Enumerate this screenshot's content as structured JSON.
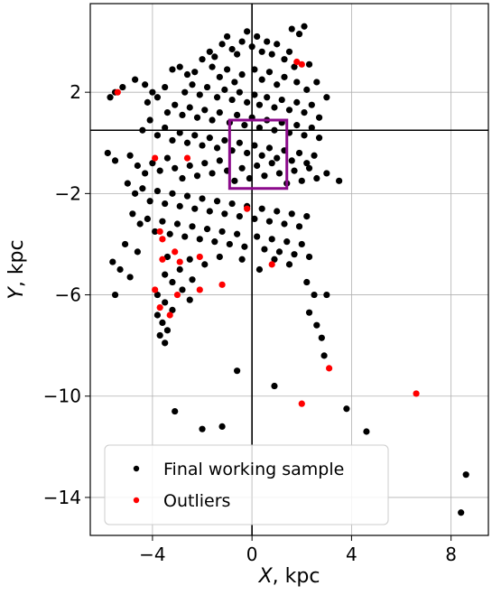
{
  "chart_data": {
    "type": "scatter",
    "xlabel_var": "X",
    "xlabel_unit": ", kpc",
    "ylabel_var": "Y",
    "ylabel_unit": ", kpc",
    "xlim": [
      -6.5,
      9.5
    ],
    "ylim": [
      -15.5,
      5.5
    ],
    "xticks": [
      -4,
      0,
      4,
      8
    ],
    "yticks": [
      2,
      -2,
      -6,
      -10,
      -14
    ],
    "xtick_labels": [
      "−4",
      "0",
      "4",
      "8"
    ],
    "ytick_labels": [
      "2",
      "−2",
      "−6",
      "−10",
      "−14"
    ],
    "grid": true,
    "reference_lines": {
      "x": 0,
      "y": 0.5
    },
    "region_box": {
      "x": [
        -0.9,
        1.4
      ],
      "y": [
        -1.8,
        0.9
      ],
      "color": "#8b0a8b"
    },
    "legend": {
      "placement": "lower-left",
      "entries": [
        {
          "label": "Final working sample",
          "color": "#000000"
        },
        {
          "label": "Outliers",
          "color": "#ff0000"
        }
      ]
    },
    "series": [
      {
        "name": "Final working sample",
        "color": "#000000",
        "points": [
          [
            -5.7,
            1.8
          ],
          [
            -5.5,
            2.0
          ],
          [
            -5.2,
            2.2
          ],
          [
            -4.7,
            2.5
          ],
          [
            -4.3,
            2.3
          ],
          [
            -4.0,
            2.0
          ],
          [
            -4.2,
            1.6
          ],
          [
            -3.8,
            1.8
          ],
          [
            -3.5,
            2.2
          ],
          [
            -3.2,
            2.9
          ],
          [
            -2.9,
            3.0
          ],
          [
            -2.6,
            2.7
          ],
          [
            -2.3,
            2.8
          ],
          [
            -2.0,
            3.3
          ],
          [
            -1.7,
            3.6
          ],
          [
            -1.5,
            3.4
          ],
          [
            -1.2,
            3.9
          ],
          [
            -1.0,
            4.2
          ],
          [
            -0.8,
            3.7
          ],
          [
            -0.6,
            3.5
          ],
          [
            -0.4,
            4.0
          ],
          [
            -0.2,
            4.4
          ],
          [
            0.0,
            3.8
          ],
          [
            0.2,
            4.2
          ],
          [
            0.4,
            3.6
          ],
          [
            0.6,
            4.0
          ],
          [
            0.8,
            3.5
          ],
          [
            1.0,
            3.9
          ],
          [
            1.3,
            3.3
          ],
          [
            1.5,
            3.6
          ],
          [
            1.7,
            3.0
          ],
          [
            1.9,
            4.3
          ],
          [
            2.1,
            4.6
          ],
          [
            2.3,
            3.1
          ],
          [
            1.6,
            4.5
          ],
          [
            -1.6,
            3.0
          ],
          [
            -1.3,
            2.6
          ],
          [
            -1.0,
            2.9
          ],
          [
            -0.7,
            2.4
          ],
          [
            -0.4,
            2.7
          ],
          [
            0.1,
            2.9
          ],
          [
            0.4,
            2.5
          ],
          [
            0.7,
            2.8
          ],
          [
            1.0,
            2.3
          ],
          [
            1.3,
            2.6
          ],
          [
            1.8,
            2.4
          ],
          [
            2.2,
            2.1
          ],
          [
            2.6,
            2.4
          ],
          [
            -2.7,
            2.0
          ],
          [
            -2.4,
            2.3
          ],
          [
            -2.1,
            1.9
          ],
          [
            -1.8,
            2.2
          ],
          [
            -1.4,
            1.8
          ],
          [
            -1.1,
            2.1
          ],
          [
            -0.8,
            1.7
          ],
          [
            -0.5,
            2.0
          ],
          [
            -0.2,
            1.6
          ],
          [
            0.1,
            1.9
          ],
          [
            0.3,
            1.5
          ],
          [
            0.6,
            1.8
          ],
          [
            0.9,
            1.4
          ],
          [
            1.2,
            1.7
          ],
          [
            1.5,
            1.3
          ],
          [
            1.8,
            1.6
          ],
          [
            2.1,
            1.2
          ],
          [
            2.4,
            1.5
          ],
          [
            2.7,
            1.0
          ],
          [
            3.0,
            1.8
          ],
          [
            -3.4,
            1.2
          ],
          [
            -3.1,
            1.5
          ],
          [
            -2.8,
            1.1
          ],
          [
            -2.5,
            1.4
          ],
          [
            -2.2,
            1.0
          ],
          [
            -1.9,
            1.3
          ],
          [
            -1.6,
            0.9
          ],
          [
            -1.3,
            1.2
          ],
          [
            -0.9,
            0.8
          ],
          [
            -0.6,
            1.1
          ],
          [
            -0.3,
            0.7
          ],
          [
            0.0,
            1.0
          ],
          [
            0.3,
            0.6
          ],
          [
            0.6,
            0.9
          ],
          [
            0.9,
            0.5
          ],
          [
            1.2,
            0.8
          ],
          [
            1.5,
            0.4
          ],
          [
            1.8,
            0.7
          ],
          [
            2.1,
            0.3
          ],
          [
            2.4,
            0.6
          ],
          [
            2.7,
            0.2
          ],
          [
            -4.4,
            0.5
          ],
          [
            -4.1,
            0.9
          ],
          [
            -3.8,
            0.3
          ],
          [
            -3.5,
            0.6
          ],
          [
            -3.2,
            0.1
          ],
          [
            -2.9,
            0.4
          ],
          [
            -2.6,
            0.0
          ],
          [
            -2.3,
            0.3
          ],
          [
            -2.0,
            -0.1
          ],
          [
            -1.7,
            0.2
          ],
          [
            -1.4,
            -0.2
          ],
          [
            -1.1,
            0.1
          ],
          [
            -0.8,
            -0.3
          ],
          [
            -0.5,
            0.0
          ],
          [
            -0.2,
            -0.4
          ],
          [
            0.1,
            -0.1
          ],
          [
            0.4,
            -0.5
          ],
          [
            0.7,
            -0.2
          ],
          [
            1.0,
            -0.6
          ],
          [
            1.3,
            -0.3
          ],
          [
            1.6,
            -0.7
          ],
          [
            1.9,
            -0.4
          ],
          [
            2.2,
            -0.8
          ],
          [
            2.5,
            -0.5
          ],
          [
            -5.8,
            -0.4
          ],
          [
            -5.5,
            -0.7
          ],
          [
            -4.9,
            -0.5
          ],
          [
            -4.6,
            -0.9
          ],
          [
            -4.3,
            -1.2
          ],
          [
            -4.0,
            -0.8
          ],
          [
            -3.7,
            -1.1
          ],
          [
            -3.4,
            -0.6
          ],
          [
            -3.1,
            -1.0
          ],
          [
            -2.8,
            -1.4
          ],
          [
            -2.5,
            -0.9
          ],
          [
            -2.2,
            -1.3
          ],
          [
            -1.9,
            -0.8
          ],
          [
            -1.6,
            -1.2
          ],
          [
            -1.3,
            -0.7
          ],
          [
            -1.0,
            -1.1
          ],
          [
            -0.7,
            -1.5
          ],
          [
            -0.4,
            -1.0
          ],
          [
            -0.1,
            -1.4
          ],
          [
            0.2,
            -0.9
          ],
          [
            0.5,
            -1.3
          ],
          [
            0.8,
            -0.8
          ],
          [
            1.1,
            -1.2
          ],
          [
            1.4,
            -1.6
          ],
          [
            1.7,
            -1.1
          ],
          [
            2.0,
            -1.5
          ],
          [
            2.3,
            -1.0
          ],
          [
            2.6,
            -1.4
          ],
          [
            3.0,
            -1.2
          ],
          [
            3.5,
            -1.5
          ],
          [
            -5.0,
            -1.6
          ],
          [
            -4.7,
            -2.0
          ],
          [
            -4.4,
            -1.8
          ],
          [
            -4.1,
            -2.3
          ],
          [
            -3.8,
            -1.9
          ],
          [
            -3.5,
            -2.4
          ],
          [
            -3.2,
            -2.0
          ],
          [
            -2.9,
            -2.5
          ],
          [
            -2.6,
            -2.1
          ],
          [
            -2.3,
            -2.6
          ],
          [
            -2.0,
            -2.2
          ],
          [
            -1.7,
            -2.7
          ],
          [
            -1.4,
            -2.3
          ],
          [
            -1.1,
            -2.8
          ],
          [
            -0.8,
            -2.4
          ],
          [
            -0.5,
            -2.9
          ],
          [
            -0.2,
            -2.5
          ],
          [
            0.1,
            -3.0
          ],
          [
            0.4,
            -2.6
          ],
          [
            0.7,
            -3.1
          ],
          [
            1.0,
            -2.7
          ],
          [
            1.3,
            -3.2
          ],
          [
            1.6,
            -2.8
          ],
          [
            1.9,
            -3.3
          ],
          [
            2.2,
            -2.9
          ],
          [
            -4.8,
            -2.8
          ],
          [
            -4.5,
            -3.2
          ],
          [
            -4.2,
            -3.0
          ],
          [
            -3.9,
            -3.5
          ],
          [
            -3.6,
            -3.1
          ],
          [
            -3.3,
            -3.6
          ],
          [
            -3.0,
            -3.2
          ],
          [
            -2.7,
            -3.7
          ],
          [
            -2.4,
            -3.3
          ],
          [
            -2.1,
            -3.8
          ],
          [
            -1.8,
            -3.4
          ],
          [
            -1.5,
            -3.9
          ],
          [
            -1.2,
            -3.5
          ],
          [
            -0.9,
            -4.0
          ],
          [
            -0.6,
            -3.6
          ],
          [
            -0.3,
            -4.1
          ],
          [
            0.2,
            -3.7
          ],
          [
            0.5,
            -4.2
          ],
          [
            0.8,
            -3.8
          ],
          [
            1.1,
            -4.3
          ],
          [
            1.4,
            -3.9
          ],
          [
            1.7,
            -4.4
          ],
          [
            2.0,
            -4.0
          ],
          [
            2.3,
            -4.5
          ],
          [
            -5.1,
            -4.0
          ],
          [
            -4.6,
            -4.3
          ],
          [
            -3.4,
            -4.5
          ],
          [
            -2.5,
            -4.6
          ],
          [
            -1.9,
            -4.8
          ],
          [
            -1.3,
            -4.5
          ],
          [
            -0.4,
            -4.6
          ],
          [
            0.3,
            -5.0
          ],
          [
            0.9,
            -4.6
          ],
          [
            1.5,
            -4.8
          ],
          [
            -5.6,
            -4.7
          ],
          [
            -5.3,
            -5.0
          ],
          [
            -4.9,
            -5.3
          ],
          [
            -3.5,
            -5.2
          ],
          [
            -3.2,
            -5.5
          ],
          [
            -2.9,
            -5.0
          ],
          [
            -2.4,
            -5.4
          ],
          [
            -5.5,
            -6.0
          ],
          [
            -3.8,
            -6.0
          ],
          [
            -3.5,
            -6.3
          ],
          [
            -3.2,
            -6.6
          ],
          [
            -3.8,
            -6.8
          ],
          [
            -3.6,
            -7.1
          ],
          [
            -3.4,
            -7.4
          ],
          [
            -3.7,
            -7.6
          ],
          [
            -3.5,
            -7.9
          ],
          [
            -2.8,
            -5.8
          ],
          [
            -2.5,
            -6.2
          ],
          [
            2.2,
            -5.5
          ],
          [
            2.5,
            -6.0
          ],
          [
            3.0,
            -6.0
          ],
          [
            2.3,
            -6.7
          ],
          [
            2.6,
            -7.2
          ],
          [
            2.8,
            -7.7
          ],
          [
            2.9,
            -8.4
          ],
          [
            -0.6,
            -9.0
          ],
          [
            0.9,
            -9.6
          ],
          [
            -3.1,
            -10.6
          ],
          [
            -2.0,
            -11.3
          ],
          [
            -1.2,
            -11.2
          ],
          [
            3.8,
            -10.5
          ],
          [
            4.6,
            -11.4
          ],
          [
            8.6,
            -13.1
          ],
          [
            8.4,
            -14.6
          ]
        ]
      },
      {
        "name": "Outliers",
        "color": "#ff0000",
        "points": [
          [
            -5.4,
            2.0
          ],
          [
            1.8,
            3.2
          ],
          [
            2.0,
            3.1
          ],
          [
            -2.6,
            -0.6
          ],
          [
            -3.9,
            -0.6
          ],
          [
            -0.2,
            -2.6
          ],
          [
            -3.7,
            -3.5
          ],
          [
            -3.6,
            -3.8
          ],
          [
            -3.1,
            -4.3
          ],
          [
            -3.6,
            -4.6
          ],
          [
            -2.9,
            -4.7
          ],
          [
            -2.1,
            -4.5
          ],
          [
            -3.9,
            -5.8
          ],
          [
            -3.0,
            -6.0
          ],
          [
            -2.1,
            -5.8
          ],
          [
            -1.2,
            -5.6
          ],
          [
            0.8,
            -4.8
          ],
          [
            -3.7,
            -6.5
          ],
          [
            -3.3,
            -6.8
          ],
          [
            3.1,
            -8.9
          ],
          [
            2.0,
            -10.3
          ],
          [
            6.6,
            -9.9
          ]
        ]
      }
    ]
  }
}
